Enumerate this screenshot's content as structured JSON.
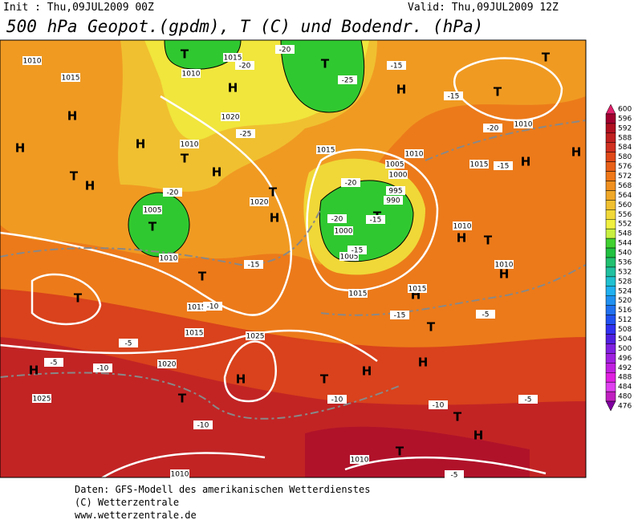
{
  "header": {
    "init": "Init : Thu,09JUL2009 00Z",
    "valid": "Valid: Thu,09JUL2009 12Z",
    "title": "500 hPa Geopot.(gpdm), T (C) und Bodendr. (hPa)"
  },
  "colorbar": {
    "values": [
      600,
      596,
      592,
      588,
      584,
      580,
      576,
      572,
      568,
      564,
      560,
      556,
      552,
      548,
      544,
      540,
      536,
      532,
      528,
      524,
      520,
      516,
      512,
      508,
      504,
      500,
      496,
      492,
      488,
      484,
      480,
      476
    ],
    "colors": [
      "#e0206a",
      "#a0002e",
      "#b01020",
      "#c02020",
      "#d03020",
      "#e04818",
      "#e86018",
      "#f07818",
      "#f09020",
      "#f0a828",
      "#f0c030",
      "#f0d838",
      "#f0f040",
      "#c8f040",
      "#40d030",
      "#20c040",
      "#20c070",
      "#20c0a0",
      "#20c0d0",
      "#20b0f0",
      "#2090f0",
      "#2070f0",
      "#2050f0",
      "#3030f0",
      "#5020e0",
      "#8020e0",
      "#a020e0",
      "#c020e0",
      "#e020e0",
      "#e040f0",
      "#c020c0",
      "#8000a0"
    ]
  },
  "map": {
    "centers": [
      "T",
      "T",
      "H",
      "H",
      "H",
      "H",
      "T",
      "H",
      "T",
      "H",
      "T",
      "H",
      "T",
      "T",
      "H",
      "T",
      "T",
      "H",
      "H",
      "H",
      "T",
      "H",
      "T",
      "T",
      "H",
      "T",
      "H",
      "H",
      "T",
      "H",
      "H",
      "T",
      "T",
      "H",
      "T"
    ],
    "isobars": [
      "1010",
      "1015",
      "1010",
      "1015",
      "1020",
      "1010",
      "1005",
      "1010",
      "1020",
      "1015",
      "1010",
      "1005",
      "1000",
      "995",
      "990",
      "1000",
      "1005",
      "1015",
      "1015",
      "1010",
      "1015",
      "1010",
      "1010",
      "1015",
      "1025",
      "1020",
      "1025",
      "1015",
      "1010",
      "1010"
    ],
    "temps": [
      "-20",
      "-20",
      "-25",
      "-25",
      "-15",
      "-15",
      "-20",
      "-15",
      "-20",
      "-20",
      "-15",
      "-20",
      "-15",
      "-10",
      "-15",
      "-10",
      "-5",
      "-5",
      "-10",
      "-10",
      "-5",
      "-15",
      "-10",
      "-5",
      "-5"
    ]
  },
  "footer": {
    "lines": [
      "Daten: GFS-Modell des amerikanischen Wetterdienstes",
      "(C) Wetterzentrale",
      "www.wetterzentrale.de"
    ]
  }
}
